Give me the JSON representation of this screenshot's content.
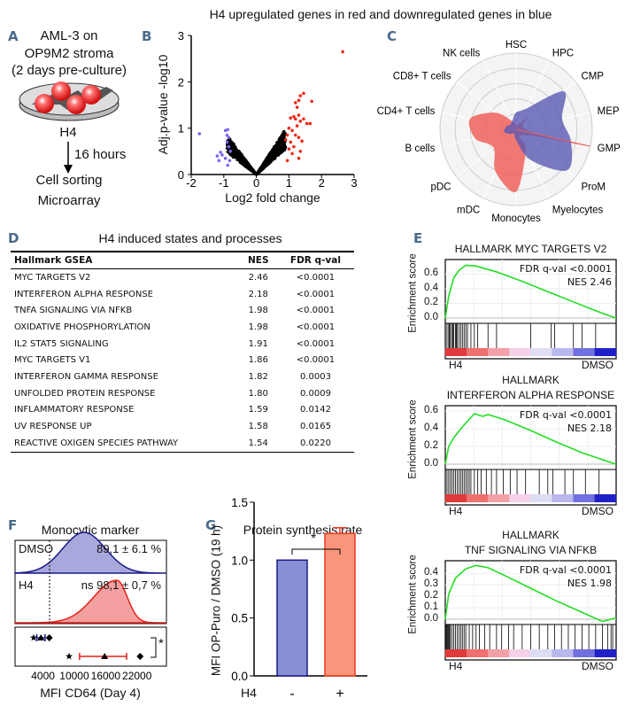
{
  "figure_title": "H4 upregulated genes in red and downregulated genes in blue",
  "panels": {
    "a": "A",
    "b": "B",
    "c": "C",
    "d": "D",
    "e": "E",
    "f": "F",
    "g": "G"
  },
  "panel_a": {
    "lines": [
      "AML-3 on",
      "OP9M2 stroma",
      "(2 days pre-culture)"
    ],
    "treatment": "H4",
    "duration": "16 hours",
    "steps": [
      "Cell sorting",
      "Microarray"
    ]
  },
  "chart_data": [
    {
      "type": "scatter",
      "panel": "B",
      "xlabel": "Log2 fold change",
      "ylabel": "Adj.p-value -log10",
      "xlim": [
        -2,
        3
      ],
      "ylim": [
        0,
        3
      ],
      "xticks": [
        "-2",
        "-1",
        "0",
        "1",
        "2",
        "3"
      ],
      "yticks": [
        "0",
        "1",
        "2",
        "3"
      ],
      "colors": {
        "up": "#ee2a1a",
        "down": "#7b68ee",
        "ns": "#000000"
      },
      "up_points": [
        [
          2.65,
          2.65
        ],
        [
          1.45,
          1.75
        ],
        [
          1.35,
          1.7
        ],
        [
          1.3,
          1.6
        ],
        [
          1.2,
          1.55
        ],
        [
          1.25,
          1.45
        ],
        [
          1.7,
          1.58
        ],
        [
          1.05,
          1.22
        ],
        [
          1.15,
          1.25
        ],
        [
          1.2,
          1.2
        ],
        [
          1.3,
          1.28
        ],
        [
          1.35,
          1.15
        ],
        [
          1.55,
          1.1
        ],
        [
          1.65,
          1.1
        ],
        [
          1.45,
          1.2
        ],
        [
          1.0,
          1.0
        ],
        [
          1.1,
          0.95
        ],
        [
          1.2,
          0.85
        ],
        [
          1.3,
          0.8
        ],
        [
          1.35,
          0.5
        ],
        [
          1.3,
          0.35
        ],
        [
          1.15,
          0.6
        ],
        [
          1.05,
          0.7
        ],
        [
          0.95,
          0.85
        ],
        [
          0.9,
          0.75
        ],
        [
          1.0,
          0.55
        ],
        [
          1.1,
          0.45
        ],
        [
          0.95,
          0.3
        ],
        [
          1.4,
          0.72
        ],
        [
          1.25,
          1.05
        ]
      ],
      "down_points": [
        [
          -1.75,
          0.88
        ],
        [
          -0.95,
          0.95
        ],
        [
          -0.88,
          0.97
        ],
        [
          -0.9,
          0.85
        ],
        [
          -0.85,
          0.8
        ],
        [
          -1.2,
          0.4
        ],
        [
          -1.1,
          0.48
        ],
        [
          -1.05,
          0.42
        ],
        [
          -1.15,
          0.3
        ],
        [
          -0.95,
          0.35
        ],
        [
          -0.85,
          0.6
        ],
        [
          -0.8,
          0.5
        ],
        [
          -0.9,
          0.7
        ],
        [
          -0.82,
          0.3
        ],
        [
          -0.88,
          0.2
        ]
      ]
    },
    {
      "type": "radar",
      "panel": "C",
      "axes": [
        "HSC",
        "HPC",
        "CMP",
        "MEP",
        "GMP",
        "ProM",
        "Myelocytes",
        "Monocytes",
        "mDC",
        "pDC",
        "B cells",
        "CD4+ T cells",
        "CD8+ T cells",
        "NK cells"
      ],
      "series": [
        {
          "color": "#f0605a",
          "values": [
            0.06,
            0.08,
            0.62,
            0.1,
            0.99,
            0.12,
            0.3,
            0.82,
            0.62,
            0.38,
            0.55,
            0.62,
            0.35,
            0.12
          ]
        },
        {
          "color": "#5a5ab4",
          "values": [
            0.22,
            0.3,
            0.8,
            0.62,
            0.74,
            0.86,
            0.45,
            0.14,
            0.06,
            0.1,
            0.16,
            0.14,
            0.1,
            0.12
          ]
        }
      ]
    },
    {
      "type": "table",
      "panel": "D",
      "title": "H4 induced states and processes",
      "columns": [
        "Hallmark GSEA",
        "NES",
        "FDR q-val"
      ],
      "rows": [
        [
          "MYC TARGETS V2",
          "2.46",
          "<0.0001"
        ],
        [
          "INTERFERON ALPHA RESPONSE",
          "2.18",
          "<0.0001"
        ],
        [
          "TNFA SIGNALING VIA NFKB",
          "1.98",
          "<0.0001"
        ],
        [
          "OXIDATIVE PHOSPHORYLATION",
          "1.98",
          "<0.0001"
        ],
        [
          "IL2 STAT5 SIGNALING",
          "1.91",
          "<0.0001"
        ],
        [
          "MYC TARGETS V1",
          "1.86",
          "<0.0001"
        ],
        [
          "INTERFERON GAMMA RESPONSE",
          "1.82",
          "0.0003"
        ],
        [
          "UNFOLDED PROTEIN RESPONSE",
          "1.80",
          "0.0009"
        ],
        [
          "INFLAMMATORY RESPONSE",
          "1.59",
          "0.0142"
        ],
        [
          "UV RESPONSE UP",
          "1.58",
          "0.0165"
        ],
        [
          "REACTIVE OXIGEN SPECIES PATHWAY",
          "1.54",
          "0.0220"
        ]
      ]
    },
    {
      "type": "line",
      "panel": "E",
      "ylabel": "Enrichment score",
      "left_label": "H4",
      "right_label": "DMSO",
      "curve_color": "#22dd22",
      "plots": [
        {
          "title": [
            "HALLMARK MYC TARGETS V2"
          ],
          "fdr": "FDR q-val <0.0001",
          "nes": "NES 2.46",
          "yticks": [
            "0.0",
            "0.2",
            "0.4",
            "0.6"
          ],
          "ymax": 0.75,
          "es": [
            [
              0,
              0
            ],
            [
              0.02,
              0.3
            ],
            [
              0.05,
              0.55
            ],
            [
              0.08,
              0.65
            ],
            [
              0.12,
              0.72
            ],
            [
              0.18,
              0.71
            ],
            [
              0.3,
              0.63
            ],
            [
              0.45,
              0.5
            ],
            [
              0.6,
              0.36
            ],
            [
              0.75,
              0.22
            ],
            [
              0.88,
              0.1
            ],
            [
              0.96,
              0.03
            ],
            [
              1,
              0
            ]
          ],
          "hits": [
            0.01,
            0.02,
            0.025,
            0.03,
            0.04,
            0.045,
            0.05,
            0.06,
            0.065,
            0.07,
            0.08,
            0.09,
            0.1,
            0.11,
            0.12,
            0.13,
            0.15,
            0.17,
            0.19,
            0.25,
            0.3,
            0.5,
            0.62,
            0.64,
            0.75,
            0.8,
            0.88
          ]
        },
        {
          "title": [
            "HALLMARK",
            "INTERFERON ALPHA RESPONSE"
          ],
          "fdr": "FDR q-val <0.0001",
          "nes": "NES 2.18",
          "yticks": [
            "0.0",
            "0.2",
            "0.4",
            "0.6"
          ],
          "ymax": 0.62,
          "es": [
            [
              0,
              0
            ],
            [
              0.02,
              0.2
            ],
            [
              0.05,
              0.3
            ],
            [
              0.1,
              0.42
            ],
            [
              0.17,
              0.57
            ],
            [
              0.22,
              0.54
            ],
            [
              0.25,
              0.56
            ],
            [
              0.35,
              0.5
            ],
            [
              0.5,
              0.38
            ],
            [
              0.65,
              0.25
            ],
            [
              0.8,
              0.13
            ],
            [
              0.92,
              0.05
            ],
            [
              1,
              0
            ]
          ],
          "hits": [
            0.01,
            0.02,
            0.03,
            0.04,
            0.05,
            0.06,
            0.07,
            0.08,
            0.09,
            0.1,
            0.11,
            0.12,
            0.13,
            0.14,
            0.15,
            0.17,
            0.19,
            0.21,
            0.24,
            0.27,
            0.3,
            0.34,
            0.38,
            0.42,
            0.47,
            0.55,
            0.6,
            0.63,
            0.7,
            0.75,
            0.82,
            0.9
          ]
        },
        {
          "title": [
            "HALLMARK",
            "TNF SIGNALING VIA NFKB"
          ],
          "fdr": "FDR q-val <0.0001",
          "nes": "NES 1.98",
          "yticks": [
            "0.0",
            "0.1",
            "0.2",
            "0.3",
            "0.4"
          ],
          "ymax": 0.48,
          "es": [
            [
              0,
              0
            ],
            [
              0.02,
              0.22
            ],
            [
              0.06,
              0.36
            ],
            [
              0.12,
              0.44
            ],
            [
              0.18,
              0.47
            ],
            [
              0.25,
              0.45
            ],
            [
              0.35,
              0.38
            ],
            [
              0.5,
              0.27
            ],
            [
              0.65,
              0.16
            ],
            [
              0.8,
              0.06
            ],
            [
              0.92,
              -0.02
            ],
            [
              0.97,
              0.0
            ],
            [
              1,
              0.01
            ]
          ],
          "hits": [
            0.005,
            0.01,
            0.015,
            0.02,
            0.025,
            0.03,
            0.04,
            0.05,
            0.06,
            0.07,
            0.08,
            0.09,
            0.1,
            0.11,
            0.12,
            0.14,
            0.16,
            0.18,
            0.2,
            0.23,
            0.26,
            0.3,
            0.33,
            0.37,
            0.4,
            0.45,
            0.5,
            0.55,
            0.6,
            0.64,
            0.68,
            0.72,
            0.76,
            0.8,
            0.84,
            0.88,
            0.92,
            0.95,
            0.97,
            0.98
          ]
        }
      ]
    },
    {
      "type": "area",
      "panel": "F",
      "title": "Monocytic marker",
      "xlabel": "MFI CD64 (Day 4)",
      "xticks": [
        "4000",
        "10000",
        "16000",
        "22000"
      ],
      "histograms": [
        {
          "label": "DMSO",
          "stat": "89,1 ± 6.1 %",
          "color": "#1a1a8a",
          "fill": "#a8a8dc"
        },
        {
          "label": "H4",
          "stat": "ns 98,1 ± 0,7 %",
          "color": "#e8201a",
          "fill": "#f4a0a0"
        }
      ],
      "dmso_points": [
        2200,
        3600,
        5200
      ],
      "dmso_mean": 3600,
      "dmso_err": [
        2800,
        4400
      ],
      "h4_points": [
        9000,
        15800,
        22600
      ],
      "h4_mean": 15800,
      "h4_err": [
        11000,
        20000
      ],
      "significance": "*"
    },
    {
      "type": "bar",
      "panel": "G",
      "title": "Protein synthesis rate",
      "ylabel": "MFI OP-Puro / DMSO (19 h)",
      "categories": [
        "-",
        "+"
      ],
      "category_axis_label": "H4",
      "values": [
        1.0,
        1.23
      ],
      "errors": [
        0,
        0.05
      ],
      "ylim": [
        0,
        1.5
      ],
      "yticks": [
        "0.0",
        "0.5",
        "1.0",
        "1.5"
      ],
      "significance": "*",
      "colors": {
        "bar1": "#8890d4",
        "bar1_edge": "#1a1a8a",
        "bar2": "#f8957a",
        "bar2_edge": "#ee3a1a"
      }
    }
  ]
}
